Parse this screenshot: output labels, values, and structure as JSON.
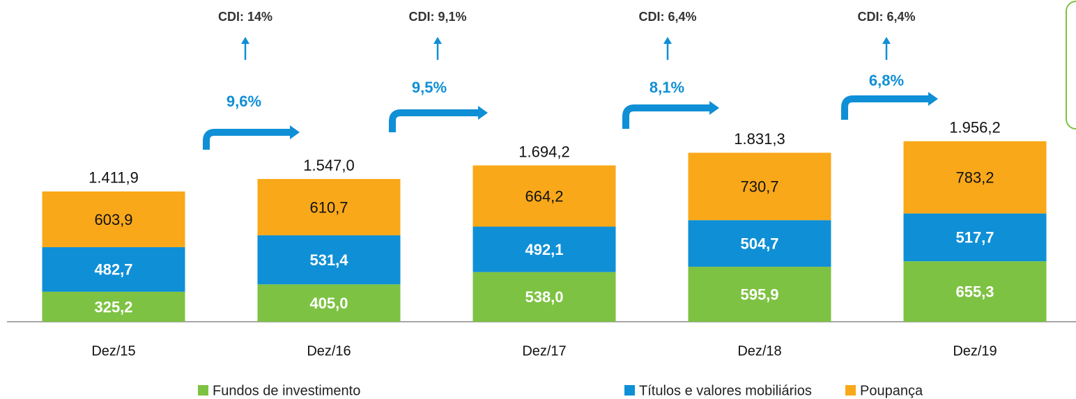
{
  "chart_data": {
    "type": "stacked_bar",
    "categories": [
      "Dez/15",
      "Dez/16",
      "Dez/17",
      "Dez/18",
      "Dez/19"
    ],
    "series": [
      {
        "name": "Fundos de investimento",
        "color": "#7dc242",
        "values": [
          325.2,
          405.0,
          538.0,
          595.9,
          655.3
        ],
        "value_labels": [
          "325,2",
          "405,0",
          "538,0",
          "595,9",
          "655,3"
        ]
      },
      {
        "name": "Títulos e valores mobiliários",
        "color": "#0f8fd6",
        "values": [
          482.7,
          531.4,
          492.1,
          504.7,
          517.7
        ],
        "value_labels": [
          "482,7",
          "531,4",
          "492,1",
          "504,7",
          "517,7"
        ]
      },
      {
        "name": "Poupança",
        "color": "#f9a81a",
        "values": [
          603.9,
          610.7,
          664.2,
          730.7,
          783.2
        ],
        "value_labels": [
          "603,9",
          "610,7",
          "664,2",
          "730,7",
          "783,2"
        ]
      }
    ],
    "totals": {
      "values": [
        1411.9,
        1547.0,
        1694.2,
        1831.3,
        1956.2
      ],
      "value_labels": [
        "1.411,9",
        "1.547,0",
        "1.694,2",
        "1.831,3",
        "1.956,2"
      ]
    },
    "annotations": [
      {
        "growth": "9,6%",
        "cdi": "CDI: 14%"
      },
      {
        "growth": "9,5%",
        "cdi": "CDI: 9,1%"
      },
      {
        "growth": "8,1%",
        "cdi": "CDI: 6,4%"
      },
      {
        "growth": "6,8%",
        "cdi": "CDI: 6,4%"
      }
    ],
    "ylim": [
      0,
      2400
    ]
  }
}
